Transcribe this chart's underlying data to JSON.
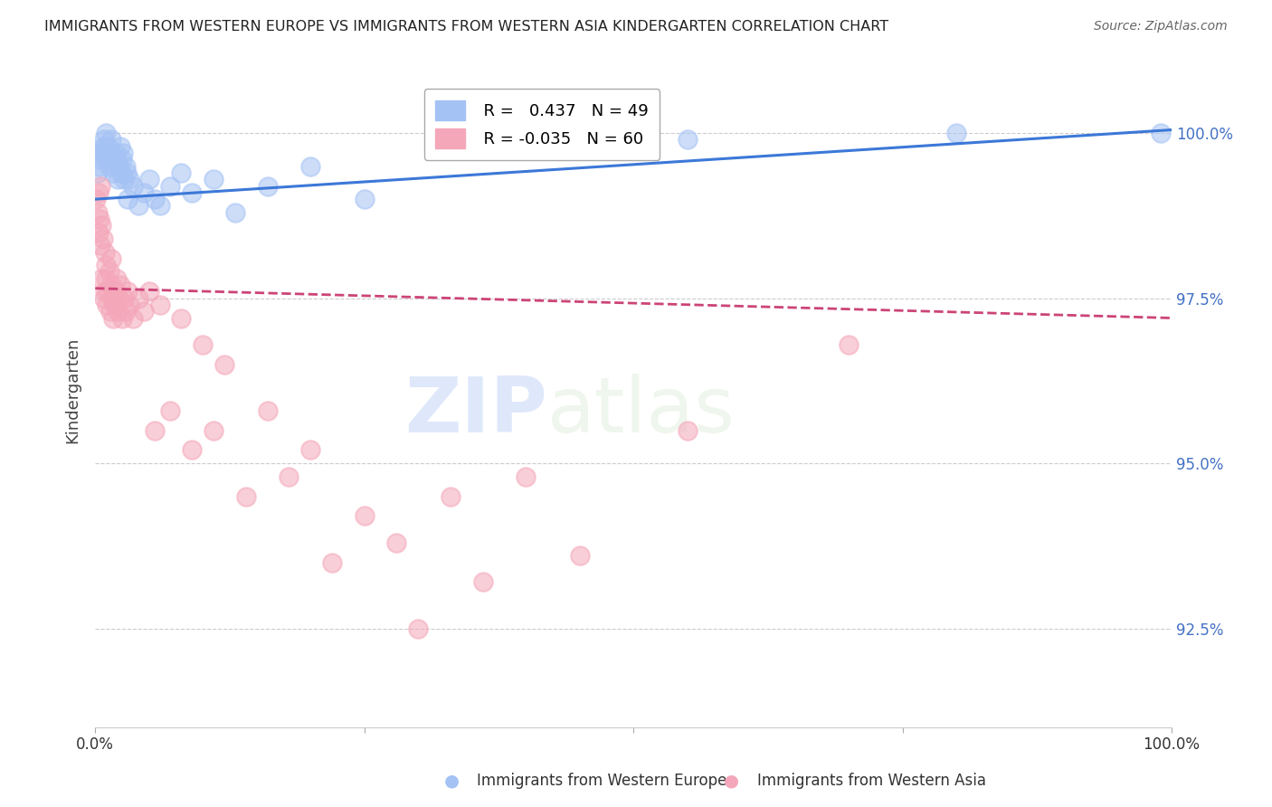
{
  "title": "IMMIGRANTS FROM WESTERN EUROPE VS IMMIGRANTS FROM WESTERN ASIA KINDERGARTEN CORRELATION CHART",
  "source": "Source: ZipAtlas.com",
  "ylabel": "Kindergarten",
  "yticks": [
    92.5,
    95.0,
    97.5,
    100.0
  ],
  "ytick_labels": [
    "92.5%",
    "95.0%",
    "97.5%",
    "100.0%"
  ],
  "xlim": [
    0.0,
    100.0
  ],
  "ylim": [
    91.0,
    101.2
  ],
  "legend_blue_r": "0.437",
  "legend_blue_n": "49",
  "legend_pink_r": "-0.035",
  "legend_pink_n": "60",
  "blue_color": "#a4c2f4",
  "pink_color": "#f4a7b9",
  "trendline_blue_color": "#3c78d8",
  "trendline_pink_color": "#cc4477",
  "watermark_zip": "ZIP",
  "watermark_atlas": "atlas",
  "background_color": "#ffffff",
  "grid_color": "#cccccc",
  "blue_x": [
    0.2,
    0.3,
    0.4,
    0.5,
    0.6,
    0.7,
    0.8,
    0.9,
    1.0,
    1.0,
    1.1,
    1.2,
    1.3,
    1.4,
    1.5,
    1.6,
    1.7,
    1.8,
    1.9,
    2.0,
    2.1,
    2.2,
    2.3,
    2.4,
    2.5,
    2.6,
    2.7,
    2.8,
    2.9,
    3.0,
    3.2,
    3.5,
    4.0,
    4.5,
    5.0,
    5.5,
    6.0,
    7.0,
    8.0,
    9.0,
    11.0,
    13.0,
    16.0,
    20.0,
    25.0,
    42.0,
    55.0,
    80.0,
    99.0
  ],
  "blue_y": [
    99.4,
    99.5,
    99.6,
    99.7,
    99.7,
    99.8,
    99.9,
    99.8,
    100.0,
    99.7,
    99.6,
    99.8,
    99.5,
    99.7,
    99.9,
    99.6,
    99.4,
    99.5,
    99.7,
    99.6,
    99.3,
    99.5,
    99.8,
    99.4,
    99.6,
    99.7,
    99.3,
    99.5,
    99.4,
    99.0,
    99.3,
    99.2,
    98.9,
    99.1,
    99.3,
    99.0,
    98.9,
    99.2,
    99.4,
    99.1,
    99.3,
    98.8,
    99.2,
    99.5,
    99.0,
    99.8,
    99.9,
    100.0,
    100.0
  ],
  "pink_x": [
    0.1,
    0.2,
    0.3,
    0.3,
    0.4,
    0.5,
    0.5,
    0.6,
    0.6,
    0.7,
    0.8,
    0.9,
    0.9,
    1.0,
    1.0,
    1.1,
    1.2,
    1.3,
    1.4,
    1.5,
    1.5,
    1.6,
    1.7,
    1.8,
    1.9,
    2.0,
    2.1,
    2.2,
    2.3,
    2.5,
    2.7,
    2.8,
    3.0,
    3.2,
    3.5,
    4.0,
    4.5,
    5.0,
    5.5,
    6.0,
    7.0,
    8.0,
    9.0,
    10.0,
    11.0,
    12.0,
    14.0,
    16.0,
    18.0,
    20.0,
    22.0,
    25.0,
    28.0,
    30.0,
    33.0,
    36.0,
    40.0,
    45.0,
    55.0,
    70.0
  ],
  "pink_y": [
    99.0,
    98.8,
    99.1,
    98.5,
    98.7,
    98.3,
    99.2,
    98.6,
    97.8,
    98.4,
    97.5,
    98.2,
    97.6,
    97.8,
    98.0,
    97.4,
    97.6,
    97.9,
    97.3,
    97.7,
    98.1,
    97.5,
    97.2,
    97.4,
    97.6,
    97.8,
    97.3,
    97.5,
    97.7,
    97.2,
    97.5,
    97.3,
    97.6,
    97.4,
    97.2,
    97.5,
    97.3,
    97.6,
    95.5,
    97.4,
    95.8,
    97.2,
    95.2,
    96.8,
    95.5,
    96.5,
    94.5,
    95.8,
    94.8,
    95.2,
    93.5,
    94.2,
    93.8,
    92.5,
    94.5,
    93.2,
    94.8,
    93.6,
    95.5,
    96.8
  ],
  "trendline_blue_x0": 0.0,
  "trendline_blue_y0": 99.0,
  "trendline_blue_x1": 100.0,
  "trendline_blue_y1": 100.05,
  "trendline_pink_x0": 0.0,
  "trendline_pink_y0": 97.65,
  "trendline_pink_x1": 100.0,
  "trendline_pink_y1": 97.2
}
